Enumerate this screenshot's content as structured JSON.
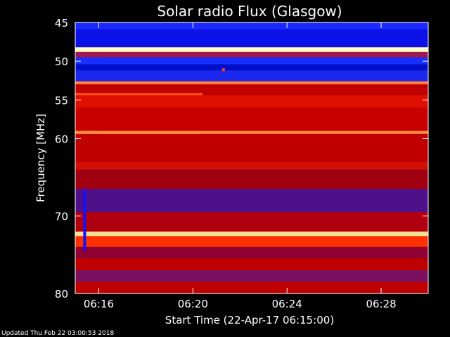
{
  "chart_data": {
    "type": "heatmap",
    "title": "Solar radio Flux (Glasgow)",
    "xlabel": "Start Time (22-Apr-17 06:15:00)",
    "ylabel": "Frequency [MHz]",
    "x_range_minutes_after_start": [
      0,
      15
    ],
    "y_range_mhz": [
      45,
      80
    ],
    "y_inverted": true,
    "xticks": [
      {
        "label": "06:16",
        "minutes": 1
      },
      {
        "label": "06:20",
        "minutes": 5
      },
      {
        "label": "06:24",
        "minutes": 9
      },
      {
        "label": "06:28",
        "minutes": 13
      }
    ],
    "yticks": [
      {
        "label": "45",
        "mhz": 45
      },
      {
        "label": "50",
        "mhz": 50
      },
      {
        "label": "55",
        "mhz": 55
      },
      {
        "label": "60",
        "mhz": 60
      },
      {
        "label": "70",
        "mhz": 70
      },
      {
        "label": "80",
        "mhz": 80
      }
    ],
    "grid": false,
    "legend": "none",
    "colormap": [
      "#000060",
      "#1010ff",
      "#8000a0",
      "#c00000",
      "#ff2000",
      "#ffa040",
      "#ffffc0"
    ],
    "bands": [
      {
        "from": 45,
        "to": 45.9,
        "color": "#1a2aff"
      },
      {
        "from": 45.9,
        "to": 48.2,
        "color": "#0a12e8"
      },
      {
        "from": 48.2,
        "to": 48.8,
        "color": "#ffffc8"
      },
      {
        "from": 48.8,
        "to": 49.5,
        "color": "#a01850"
      },
      {
        "from": 49.5,
        "to": 50.4,
        "color": "#1830ff"
      },
      {
        "from": 50.4,
        "to": 51.2,
        "color": "#0010c8"
      },
      {
        "from": 51.2,
        "to": 52.6,
        "color": "#1a28f0"
      },
      {
        "from": 52.6,
        "to": 53.0,
        "color": "#ff8040"
      },
      {
        "from": 53.0,
        "to": 54.4,
        "color": "#c00000"
      },
      {
        "from": 54.4,
        "to": 56.0,
        "color": "#e01000"
      },
      {
        "from": 56.0,
        "to": 59.0,
        "color": "#c80000"
      },
      {
        "from": 59.0,
        "to": 59.4,
        "color": "#ff9040"
      },
      {
        "from": 59.4,
        "to": 63.0,
        "color": "#c00000"
      },
      {
        "from": 63.0,
        "to": 64.0,
        "color": "#d01008"
      },
      {
        "from": 64.0,
        "to": 66.5,
        "color": "#a00010"
      },
      {
        "from": 66.5,
        "to": 69.5,
        "color": "#50108a"
      },
      {
        "from": 69.5,
        "to": 72.0,
        "color": "#b00010"
      },
      {
        "from": 72.0,
        "to": 72.6,
        "color": "#ffe090"
      },
      {
        "from": 72.6,
        "to": 74.0,
        "color": "#ff3000"
      },
      {
        "from": 74.0,
        "to": 75.5,
        "color": "#900030"
      },
      {
        "from": 75.5,
        "to": 77.0,
        "color": "#c00000"
      },
      {
        "from": 77.0,
        "to": 78.5,
        "color": "#7a1060"
      },
      {
        "from": 78.5,
        "to": 80.0,
        "color": "#c00000"
      }
    ],
    "features": [
      {
        "kind": "stripe",
        "t0": 0,
        "t1": 5.4,
        "mhz": 59.3,
        "color": "#ff9040"
      },
      {
        "kind": "stripe",
        "t0": 0,
        "t1": 5.4,
        "mhz": 54.3,
        "color": "#ff5020"
      },
      {
        "kind": "vertical",
        "t": 0.4,
        "mhz0": 66.5,
        "mhz1": 74.5,
        "color": "#1010ff"
      },
      {
        "kind": "spot",
        "t": 6.3,
        "mhz": 51.1,
        "color": "#ff4020"
      }
    ]
  },
  "footer": {
    "updated": "Updated Thu Feb 22 03:00:53 2018"
  }
}
